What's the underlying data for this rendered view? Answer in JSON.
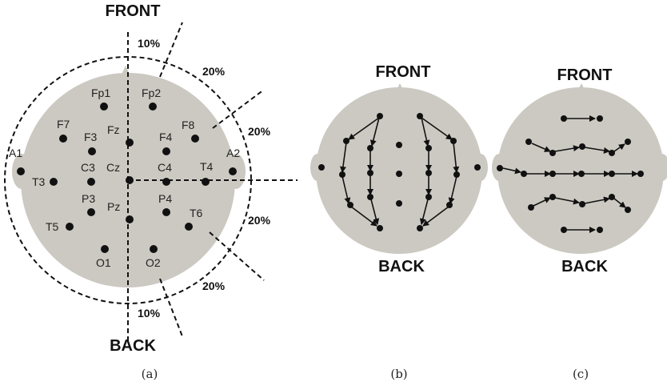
{
  "panel_a": {
    "front_label": "FRONT",
    "back_label": "BACK",
    "caption": "(a)",
    "percent_labels": {
      "top_10": "10%",
      "top_20": "20%",
      "right_upper_20": "20%",
      "right_lower_20": "20%",
      "bottom_20": "20%",
      "bottom_10": "10%"
    },
    "electrodes": {
      "fp1": "Fp1",
      "fp2": "Fp2",
      "f7": "F7",
      "f3": "F3",
      "fz": "Fz",
      "f4": "F4",
      "f8": "F8",
      "a1": "A1",
      "t3": "T3",
      "c3": "C3",
      "cz": "Cz",
      "c4": "C4",
      "t4": "T4",
      "a2": "A2",
      "t5": "T5",
      "p3": "P3",
      "pz": "Pz",
      "p4": "P4",
      "t6": "T6",
      "o1": "O1",
      "o2": "O2"
    }
  },
  "panel_b": {
    "front_label": "FRONT",
    "back_label": "BACK",
    "caption": "(b)"
  },
  "panel_c": {
    "front_label": "FRONT",
    "back_label": "BACK",
    "caption": "(c)"
  },
  "colors": {
    "head": "#ccc9c2",
    "ink": "#111111"
  }
}
